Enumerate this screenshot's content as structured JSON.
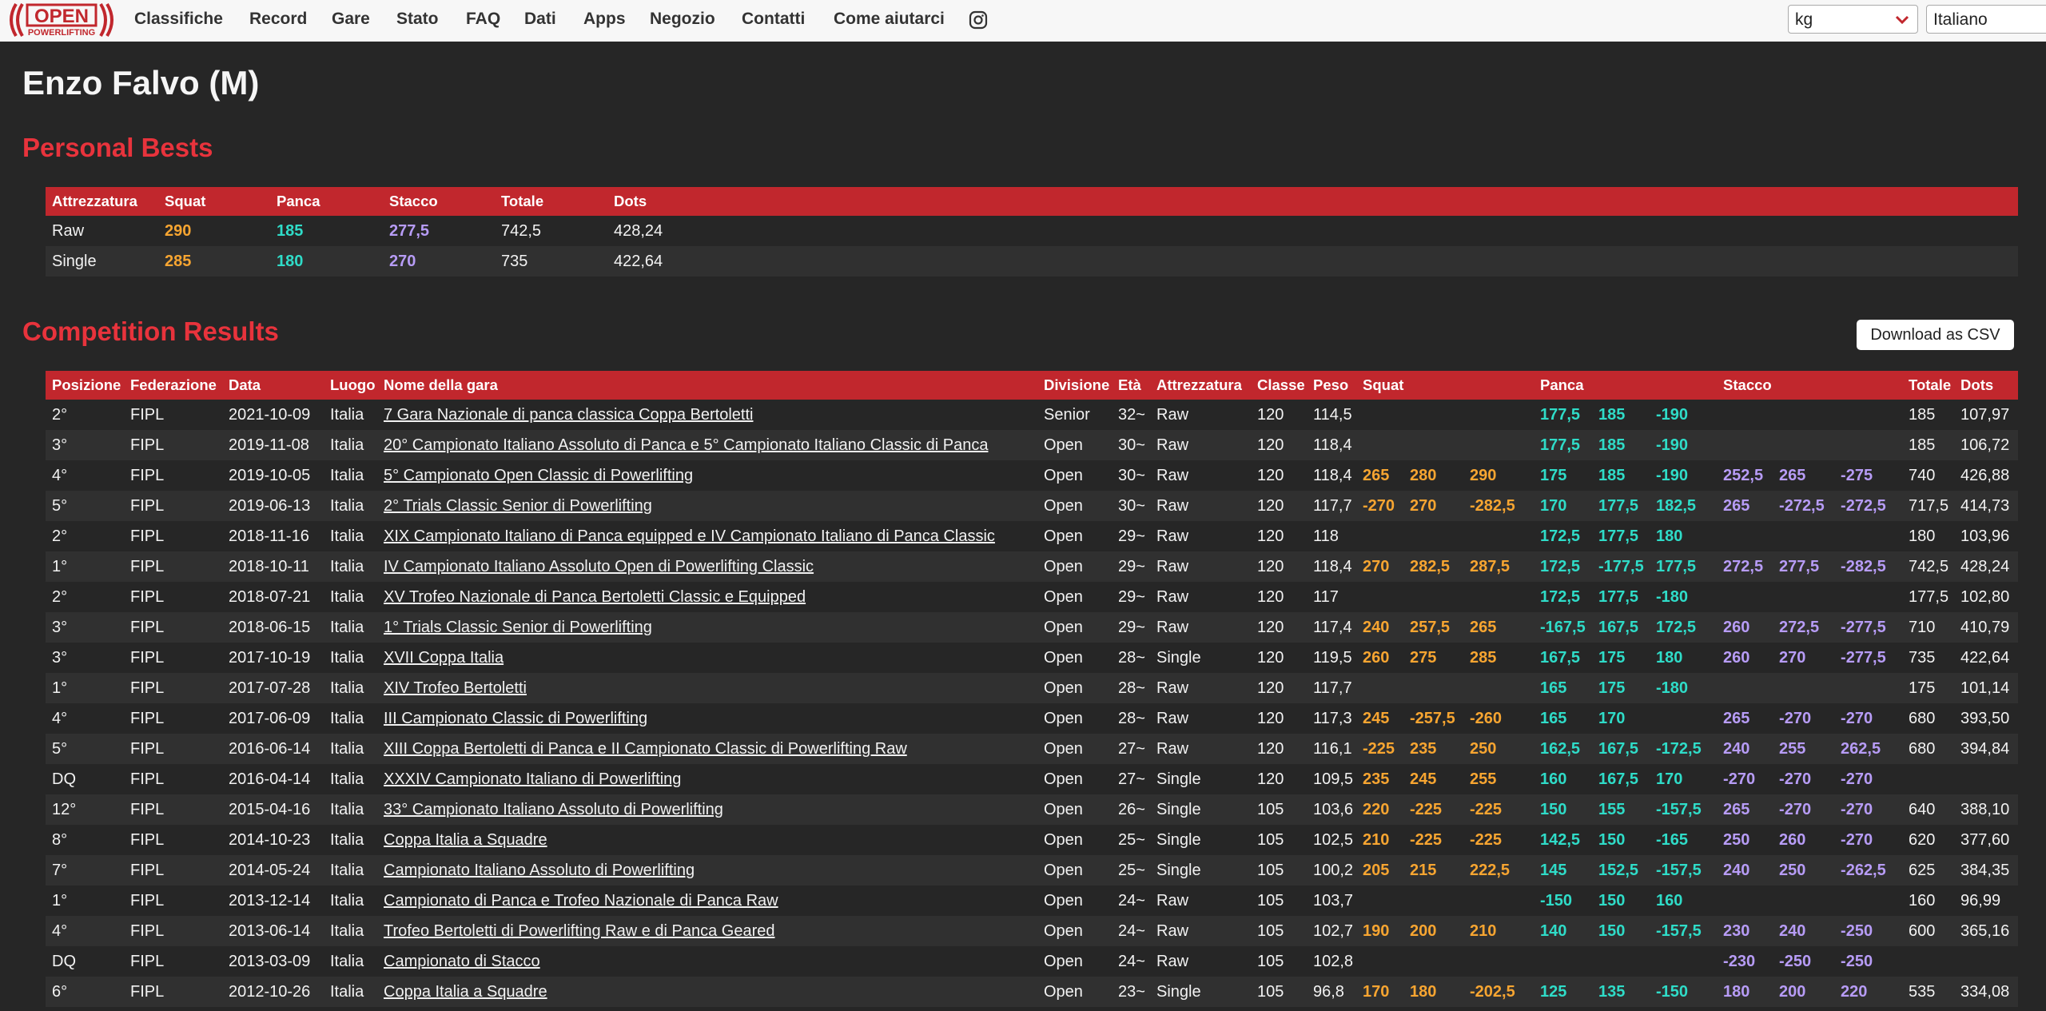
{
  "nav": {
    "logo": {
      "top": "OPEN",
      "bottom": "POWERLIFTING"
    },
    "links": [
      "Classifiche",
      "Record",
      "Gare",
      "Stato",
      "FAQ",
      "Dati",
      "Apps",
      "Negozio",
      "Contatti",
      "Come aiutarci"
    ],
    "units": "kg",
    "language": "Italiano"
  },
  "header": {
    "title": "Enzo Falvo (M)"
  },
  "personal_bests": {
    "title": "Personal Bests",
    "columns": [
      "Attrezzatura",
      "Squat",
      "Panca",
      "Stacco",
      "Totale",
      "Dots"
    ],
    "rows": [
      [
        "Raw",
        "290",
        "185",
        "277,5",
        "742,5",
        "428,24"
      ],
      [
        "Single",
        "285",
        "180",
        "270",
        "735",
        "422,64"
      ]
    ]
  },
  "results": {
    "title": "Competition Results",
    "download": "Download as CSV",
    "columns": [
      "Posizione",
      "Federazione",
      "Data",
      "Luogo",
      "Nome della gara",
      "Divisione",
      "Età",
      "Attrezzatura",
      "Classe",
      "Peso",
      "Squat",
      "Panca",
      "Stacco",
      "Totale",
      "Dots"
    ],
    "rows": [
      [
        "2°",
        "FIPL",
        "2021-10-09",
        "Italia",
        "7 Gara Nazionale di panca classica Coppa Bertoletti",
        "Senior",
        "32~",
        "Raw",
        "120",
        "114,5",
        null,
        null,
        null,
        "177,5",
        "185",
        "-190",
        null,
        null,
        null,
        "185",
        "107,97"
      ],
      [
        "3°",
        "FIPL",
        "2019-11-08",
        "Italia",
        "20° Campionato Italiano Assoluto di Panca e 5° Campionato Italiano Classic di Panca",
        "Open",
        "30~",
        "Raw",
        "120",
        "118,4",
        null,
        null,
        null,
        "177,5",
        "185",
        "-190",
        null,
        null,
        null,
        "185",
        "106,72"
      ],
      [
        "4°",
        "FIPL",
        "2019-10-05",
        "Italia",
        "5° Campionato Open Classic di Powerlifting",
        "Open",
        "30~",
        "Raw",
        "120",
        "118,4",
        "265",
        "280",
        "290",
        "175",
        "185",
        "-190",
        "252,5",
        "265",
        "-275",
        "740",
        "426,88"
      ],
      [
        "5°",
        "FIPL",
        "2019-06-13",
        "Italia",
        "2° Trials Classic Senior di Powerlifting",
        "Open",
        "30~",
        "Raw",
        "120",
        "117,7",
        "-270",
        "270",
        "-282,5",
        "170",
        "177,5",
        "182,5",
        "265",
        "-272,5",
        "-272,5",
        "717,5",
        "414,73"
      ],
      [
        "2°",
        "FIPL",
        "2018-11-16",
        "Italia",
        "XIX Campionato Italiano di Panca equipped e IV Campionato Italiano di Panca Classic",
        "Open",
        "29~",
        "Raw",
        "120",
        "118",
        null,
        null,
        null,
        "172,5",
        "177,5",
        "180",
        null,
        null,
        null,
        "180",
        "103,96"
      ],
      [
        "1°",
        "FIPL",
        "2018-10-11",
        "Italia",
        "IV Campionato Italiano Assoluto Open di Powerlifting Classic",
        "Open",
        "29~",
        "Raw",
        "120",
        "118,4",
        "270",
        "282,5",
        "287,5",
        "172,5",
        "-177,5",
        "177,5",
        "272,5",
        "277,5",
        "-282,5",
        "742,5",
        "428,24"
      ],
      [
        "2°",
        "FIPL",
        "2018-07-21",
        "Italia",
        "XV Trofeo Nazionale di Panca Bertoletti Classic e Equipped",
        "Open",
        "29~",
        "Raw",
        "120",
        "117",
        null,
        null,
        null,
        "172,5",
        "177,5",
        "-180",
        null,
        null,
        null,
        "177,5",
        "102,80"
      ],
      [
        "3°",
        "FIPL",
        "2018-06-15",
        "Italia",
        "1° Trials Classic Senior di Powerlifting",
        "Open",
        "29~",
        "Raw",
        "120",
        "117,4",
        "240",
        "257,5",
        "265",
        "-167,5",
        "167,5",
        "172,5",
        "260",
        "272,5",
        "-277,5",
        "710",
        "410,79"
      ],
      [
        "3°",
        "FIPL",
        "2017-10-19",
        "Italia",
        "XVII Coppa Italia",
        "Open",
        "28~",
        "Single",
        "120",
        "119,5",
        "260",
        "275",
        "285",
        "167,5",
        "175",
        "180",
        "260",
        "270",
        "-277,5",
        "735",
        "422,64"
      ],
      [
        "1°",
        "FIPL",
        "2017-07-28",
        "Italia",
        "XIV Trofeo Bertoletti",
        "Open",
        "28~",
        "Raw",
        "120",
        "117,7",
        null,
        null,
        null,
        "165",
        "175",
        "-180",
        null,
        null,
        null,
        "175",
        "101,14"
      ],
      [
        "4°",
        "FIPL",
        "2017-06-09",
        "Italia",
        "III Campionato Classic di Powerlifting",
        "Open",
        "28~",
        "Raw",
        "120",
        "117,3",
        "245",
        "-257,5",
        "-260",
        "165",
        "170",
        null,
        "265",
        "-270",
        "-270",
        "680",
        "393,50"
      ],
      [
        "5°",
        "FIPL",
        "2016-06-14",
        "Italia",
        "XIII Coppa Bertoletti di Panca e II Campionato Classic di Powerlifting Raw",
        "Open",
        "27~",
        "Raw",
        "120",
        "116,1",
        "-225",
        "235",
        "250",
        "162,5",
        "167,5",
        "-172,5",
        "240",
        "255",
        "262,5",
        "680",
        "394,84"
      ],
      [
        "DQ",
        "FIPL",
        "2016-04-14",
        "Italia",
        "XXXIV Campionato Italiano di Powerlifting",
        "Open",
        "27~",
        "Single",
        "120",
        "109,5",
        "235",
        "245",
        "255",
        "160",
        "167,5",
        "170",
        "-270",
        "-270",
        "-270",
        null,
        null
      ],
      [
        "12°",
        "FIPL",
        "2015-04-16",
        "Italia",
        "33° Campionato Italiano Assoluto di Powerlifting",
        "Open",
        "26~",
        "Single",
        "105",
        "103,6",
        "220",
        "-225",
        "-225",
        "150",
        "155",
        "-157,5",
        "265",
        "-270",
        "-270",
        "640",
        "388,10"
      ],
      [
        "8°",
        "FIPL",
        "2014-10-23",
        "Italia",
        "Coppa Italia a Squadre",
        "Open",
        "25~",
        "Single",
        "105",
        "102,5",
        "210",
        "-225",
        "-225",
        "142,5",
        "150",
        "-165",
        "250",
        "260",
        "-270",
        "620",
        "377,60"
      ],
      [
        "7°",
        "FIPL",
        "2014-05-24",
        "Italia",
        "Campionato Italiano Assoluto di Powerlifting",
        "Open",
        "25~",
        "Single",
        "105",
        "100,2",
        "205",
        "215",
        "222,5",
        "145",
        "152,5",
        "-157,5",
        "240",
        "250",
        "-262,5",
        "625",
        "384,35"
      ],
      [
        "1°",
        "FIPL",
        "2013-12-14",
        "Italia",
        "Campionato di Panca e Trofeo Nazionale di Panca Raw",
        "Open",
        "24~",
        "Raw",
        "105",
        "103,7",
        null,
        null,
        null,
        "-150",
        "150",
        "160",
        null,
        null,
        null,
        "160",
        "96,99"
      ],
      [
        "4°",
        "FIPL",
        "2013-06-14",
        "Italia",
        "Trofeo Bertoletti di Powerlifting Raw e di Panca Geared",
        "Open",
        "24~",
        "Raw",
        "105",
        "102,7",
        "190",
        "200",
        "210",
        "140",
        "150",
        "-157,5",
        "230",
        "240",
        "-250",
        "600",
        "365,16"
      ],
      [
        "DQ",
        "FIPL",
        "2013-03-09",
        "Italia",
        "Campionato di Stacco",
        "Open",
        "24~",
        "Raw",
        "105",
        "102,8",
        null,
        null,
        null,
        null,
        null,
        null,
        "-230",
        "-250",
        "-250",
        null,
        null
      ],
      [
        "6°",
        "FIPL",
        "2012-10-26",
        "Italia",
        "Coppa Italia a Squadre",
        "Open",
        "23~",
        "Single",
        "105",
        "96,8",
        "170",
        "180",
        "-202,5",
        "125",
        "135",
        "-150",
        "180",
        "200",
        "220",
        "535",
        "334,08"
      ]
    ]
  }
}
